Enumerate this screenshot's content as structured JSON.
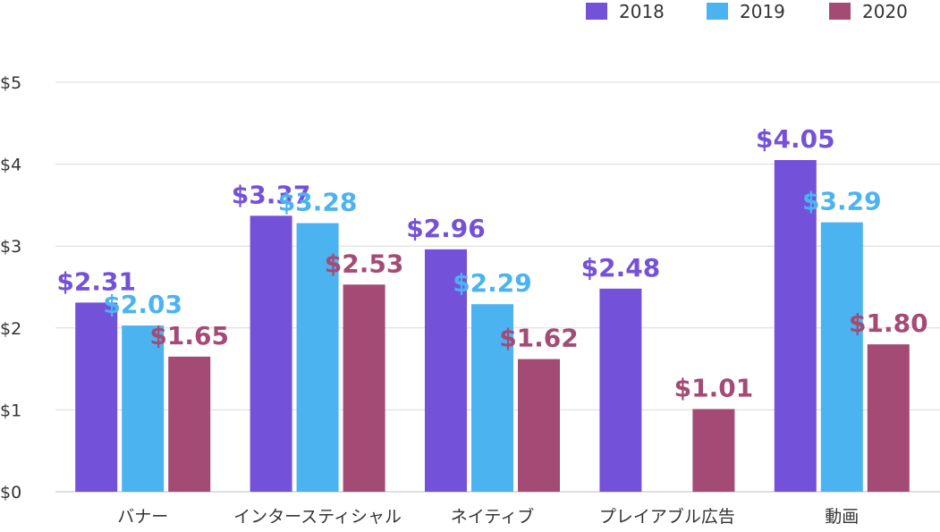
{
  "chart_data": {
    "type": "bar",
    "title": "",
    "xlabel": "",
    "ylabel": "",
    "ylim": [
      0,
      5
    ],
    "yticks": [
      0,
      1,
      2,
      3,
      4,
      5
    ],
    "ytick_labels": [
      "$0",
      "$1",
      "$2",
      "$3",
      "$4",
      "$5"
    ],
    "grid": true,
    "legend_position": "top-right",
    "categories": [
      "バナー",
      "インタースティシャル",
      "ネイティブ",
      "プレイアブル広告",
      "動画"
    ],
    "series": [
      {
        "name": "2018",
        "color": "#7451d9",
        "values": [
          2.31,
          3.37,
          2.96,
          2.48,
          4.05
        ],
        "labels": [
          "$2.31",
          "$3.37",
          "$2.96",
          "$2.48",
          "$4.05"
        ]
      },
      {
        "name": "2019",
        "color": "#4bb4f0",
        "values": [
          2.03,
          3.28,
          2.29,
          null,
          3.29
        ],
        "labels": [
          "$2.03",
          "$3.28",
          "$2.29",
          null,
          "$3.29"
        ]
      },
      {
        "name": "2020",
        "color": "#a44b75",
        "values": [
          1.65,
          2.53,
          1.62,
          1.01,
          1.8
        ],
        "labels": [
          "$1.65",
          "$2.53",
          "$1.62",
          "$1.01",
          "$1.80"
        ]
      }
    ]
  }
}
